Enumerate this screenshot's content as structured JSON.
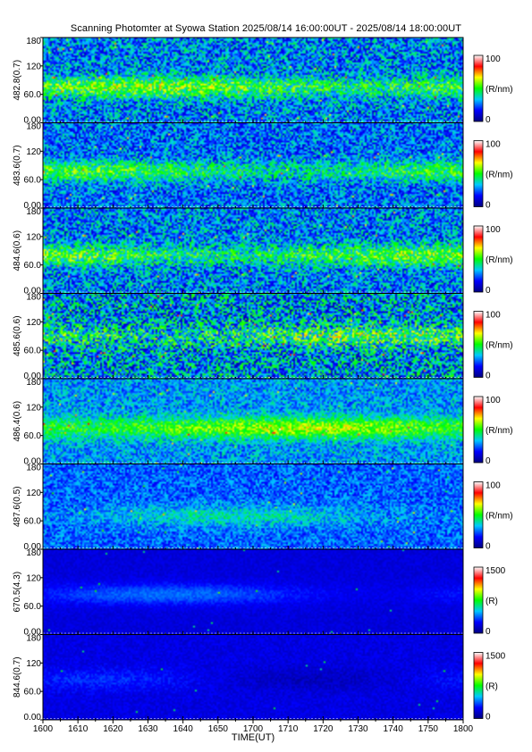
{
  "chart_data": {
    "type": "heatmap",
    "title": "Scanning Photomter at Syowa Station 2025/08/14 16:00:00UT - 2025/08/14 18:00:00UT",
    "xlabel": "TIME(UT)",
    "x_ticks": [
      "1600",
      "1610",
      "1620",
      "1630",
      "1640",
      "1650",
      "1700",
      "1710",
      "1720",
      "1730",
      "1740",
      "1750",
      "1800"
    ],
    "xlim": [
      "16:00",
      "18:00"
    ],
    "ylim": [
      0,
      180
    ],
    "y_ticks": [
      "0.00",
      "60.0",
      "120",
      "180"
    ],
    "colorscale": [
      "#000080",
      "#0000ff",
      "#00c8ff",
      "#00ff00",
      "#ffff00",
      "#ff0000",
      "#ffffff"
    ],
    "panels": [
      {
        "label": "482.8(0.7)",
        "unit": "(R/nm)",
        "cmax": "100",
        "cmin": "0",
        "band_center": 75,
        "band_level": 0.5,
        "bg_level": 0.28,
        "noise": 0.18
      },
      {
        "label": "483.6(0.7)",
        "unit": "(R/nm)",
        "cmax": "100",
        "cmin": "0",
        "band_center": 78,
        "band_level": 0.45,
        "bg_level": 0.26,
        "noise": 0.16
      },
      {
        "label": "484.6(0.6)",
        "unit": "(R/nm)",
        "cmax": "100",
        "cmin": "0",
        "band_center": 80,
        "band_level": 0.48,
        "bg_level": 0.28,
        "noise": 0.18
      },
      {
        "label": "485.6(0.6)",
        "unit": "(R/nm)",
        "cmax": "100",
        "cmin": "0",
        "band_center": 90,
        "band_level": 0.45,
        "bg_level": 0.3,
        "noise": 0.24
      },
      {
        "label": "486.4(0.6)",
        "unit": "(R/nm)",
        "cmax": "100",
        "cmin": "0",
        "band_center": 76,
        "band_level": 0.55,
        "bg_level": 0.3,
        "noise": 0.12
      },
      {
        "label": "487.6(0.5)",
        "unit": "(R/nm)",
        "cmax": "100",
        "cmin": "0",
        "band_center": 70,
        "band_level": 0.33,
        "bg_level": 0.25,
        "noise": 0.1
      },
      {
        "label": "670.5(4.3)",
        "unit": "(R)",
        "cmax": "1500",
        "cmin": "0",
        "band_center": 85,
        "band_level": 0.2,
        "bg_level": 0.12,
        "noise": 0.03
      },
      {
        "label": "844.6(0.7)",
        "unit": "(R)",
        "cmax": "1500",
        "cmin": "0",
        "band_center": 85,
        "band_level": 0.14,
        "bg_level": 0.13,
        "noise": 0.04
      }
    ]
  }
}
